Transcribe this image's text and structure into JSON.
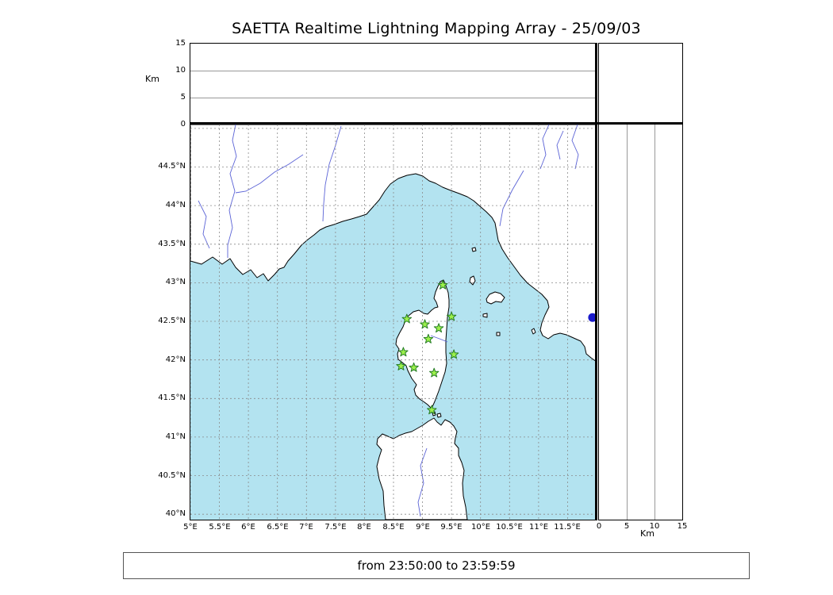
{
  "title": "SAETTA Realtime Lightning Mapping Array - 25/09/03",
  "status": "from 23:50:00 to 23:59:59",
  "colors": {
    "sea": "#b3e3f0",
    "land": "#ffffff",
    "coast": "#000000",
    "grid": "#8a8a8a",
    "river": "#5b63d6",
    "station_fill": "#9cf04b",
    "station_edge": "#267d26",
    "event_dot": "#1a1acb"
  },
  "map": {
    "lon_min": 5.0,
    "lon_max": 12.0,
    "lat_min": 39.93,
    "lat_max": 45.05,
    "lon_ticks": {
      "values": [
        5,
        5.5,
        6,
        6.5,
        7,
        7.5,
        8,
        8.5,
        9,
        9.5,
        10,
        10.5,
        11,
        11.5
      ],
      "labels": [
        "5°E",
        "5.5°E",
        "6°E",
        "6.5°E",
        "7°E",
        "7.5°E",
        "8°E",
        "8.5°E",
        "9°E",
        "9.5°E",
        "10°E",
        "10.5°E",
        "11°E",
        "11.5°E"
      ]
    },
    "lat_ticks": {
      "values": [
        44.5,
        44,
        43.5,
        43,
        42.5,
        42,
        41.5,
        41,
        40.5,
        40
      ],
      "labels": [
        "44.5°N",
        "44°N",
        "43.5°N",
        "43°N",
        "42.5°N",
        "42°N",
        "41.5°N",
        "41°N",
        "40.5°N",
        "40°N"
      ]
    },
    "lat_grid_extra": [
      45
    ]
  },
  "altitude_axis": {
    "label": "Km",
    "max": 15,
    "tick_values": [
      0,
      5,
      10,
      15
    ],
    "tick_labels": [
      "0",
      "5",
      "10",
      "15"
    ],
    "grid_values": [
      5,
      10
    ]
  },
  "stations": [
    {
      "lon": 9.35,
      "lat": 42.97
    },
    {
      "lon": 8.73,
      "lat": 42.53
    },
    {
      "lon": 9.04,
      "lat": 42.46
    },
    {
      "lon": 9.5,
      "lat": 42.56
    },
    {
      "lon": 9.28,
      "lat": 42.41
    },
    {
      "lon": 9.1,
      "lat": 42.27
    },
    {
      "lon": 8.67,
      "lat": 42.1
    },
    {
      "lon": 9.54,
      "lat": 42.07
    },
    {
      "lon": 8.63,
      "lat": 41.92
    },
    {
      "lon": 8.85,
      "lat": 41.9
    },
    {
      "lon": 9.2,
      "lat": 41.83
    },
    {
      "lon": 9.16,
      "lat": 41.35
    }
  ],
  "event_marker": {
    "lon": 11.93,
    "lat": 42.55
  }
}
